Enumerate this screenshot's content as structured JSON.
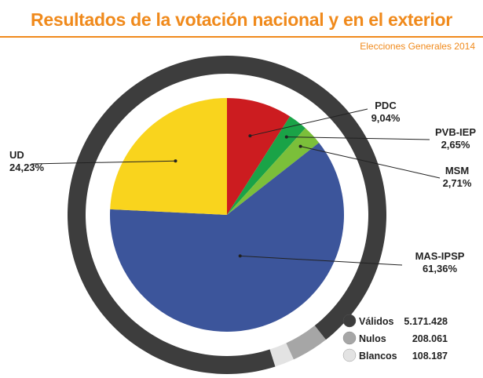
{
  "header": {
    "title": "Resultados de la votación nacional y en el exterior",
    "subtitle": "Elecciones Generales 2014"
  },
  "chart_data": [
    {
      "type": "pie",
      "title": "Resultados de la votación nacional y en el exterior",
      "subtitle": "Elecciones Generales 2014",
      "series": [
        {
          "values": [
            9.04,
            2.65,
            2.71,
            61.36,
            24.23
          ]
        }
      ],
      "categories": [
        "PDC",
        "PVB-IEP",
        "MSM",
        "MAS-IPSP",
        "UD"
      ],
      "labels": [
        "9,04%",
        "2,65%",
        "2,71%",
        "61,36%",
        "24,23%"
      ],
      "colors": [
        "#cc1c20",
        "#1aa347",
        "#7bbf3a",
        "#3c559b",
        "#f9d41d"
      ]
    },
    {
      "type": "pie",
      "categories": [
        "Válidos",
        "Nulos",
        "Blancos"
      ],
      "values": [
        5171428,
        208061,
        108187
      ],
      "labels": [
        "5.171.428",
        "208.061",
        "108.187"
      ],
      "colors": [
        "#3d3d3d",
        "#a6a6a6",
        "#e3e3e3"
      ],
      "legend": "bottom-right"
    }
  ]
}
